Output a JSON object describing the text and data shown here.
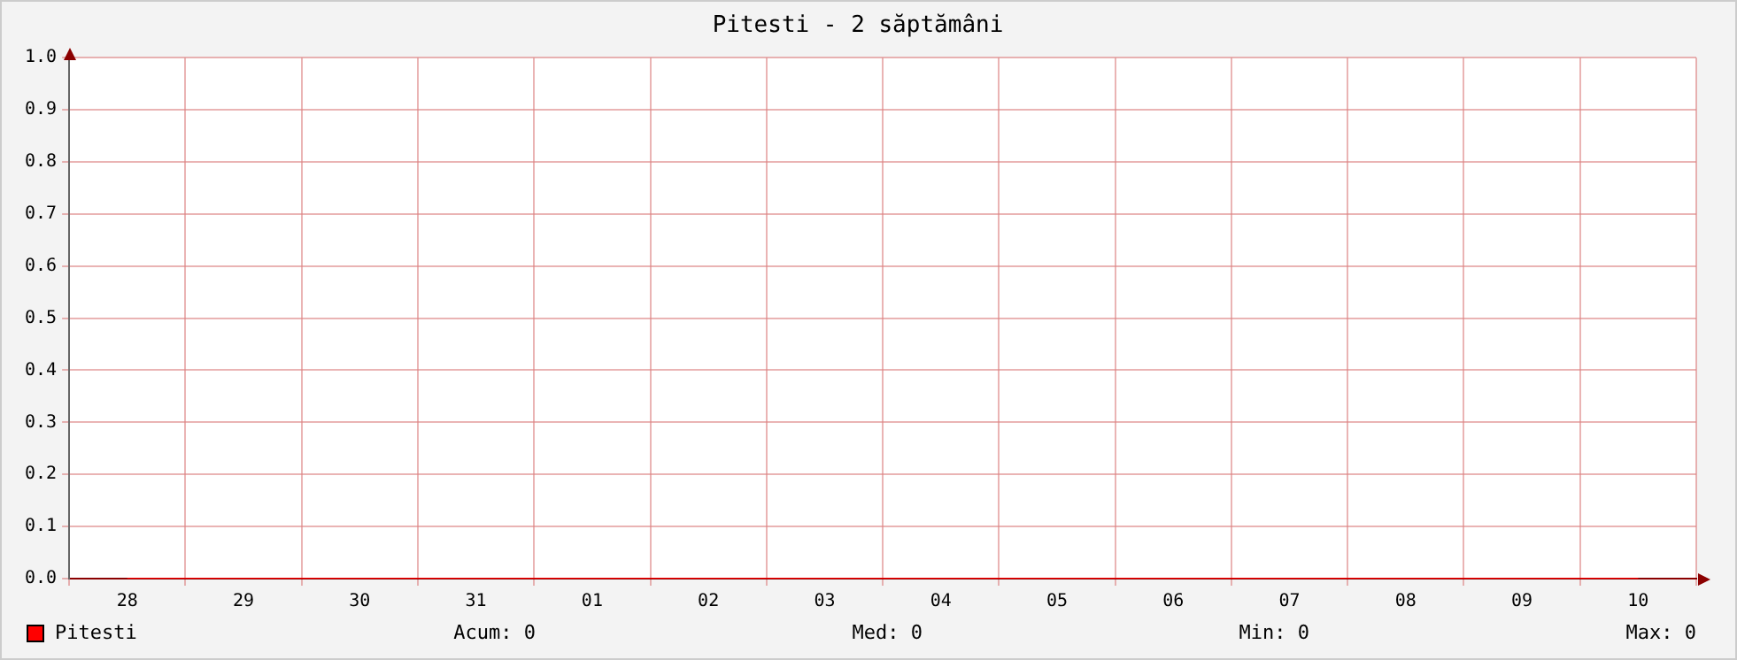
{
  "chart_data": {
    "type": "line",
    "title": "Pitesti - 2 săptămâni",
    "categories": [
      "28",
      "29",
      "30",
      "31",
      "01",
      "02",
      "03",
      "04",
      "05",
      "06",
      "07",
      "08",
      "09",
      "10"
    ],
    "series": [
      {
        "name": "Pitesti",
        "color": "#ff0000",
        "values": [
          0,
          0,
          0,
          0,
          0,
          0,
          0,
          0,
          0,
          0,
          0,
          0,
          0,
          0
        ]
      }
    ],
    "ylim": [
      0,
      1
    ],
    "yticks": [
      {
        "value": 0,
        "label": "0.0"
      },
      {
        "value": 0.1,
        "label": "0.1"
      },
      {
        "value": 0.2,
        "label": "0.2"
      },
      {
        "value": 0.3,
        "label": "0.3"
      },
      {
        "value": 0.4,
        "label": "0.4"
      },
      {
        "value": 0.5,
        "label": "0.5"
      },
      {
        "value": 0.6,
        "label": "0.6"
      },
      {
        "value": 0.7,
        "label": "0.7"
      },
      {
        "value": 0.8,
        "label": "0.8"
      },
      {
        "value": 0.9,
        "label": "0.9"
      },
      {
        "value": 1,
        "label": "1.0"
      }
    ],
    "grid": true,
    "legend": "bottom left",
    "marker": "none",
    "line_style": "solid",
    "annotations": [
      "Acum: 0",
      "Med: 0",
      "Min: 0",
      "Max: 0"
    ]
  }
}
